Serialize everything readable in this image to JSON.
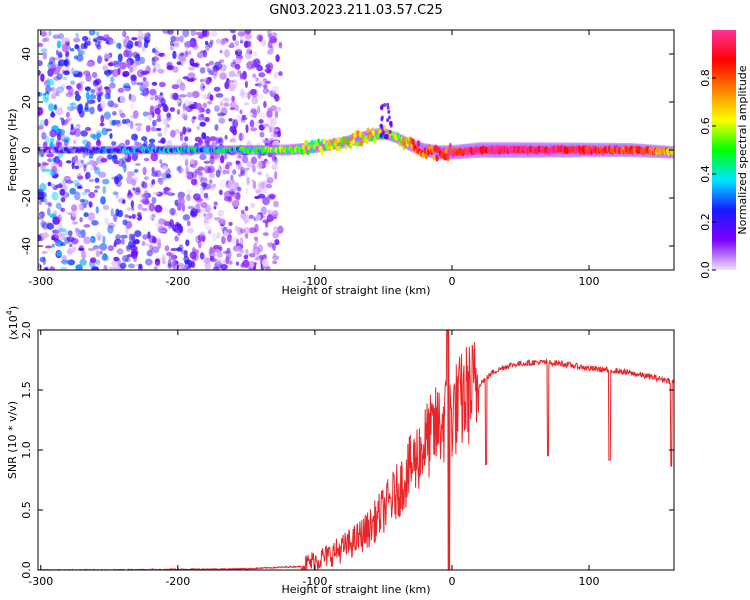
{
  "title": "GN03.2023.211.03.57.C25",
  "chart_data": [
    {
      "type": "heatmap",
      "xlabel": "Height of straight line (km)",
      "ylabel": "Frequency (Hz)",
      "xlim": [
        -302,
        162
      ],
      "ylim": [
        -50,
        50
      ],
      "xticks": [
        -300,
        -200,
        -100,
        0,
        100
      ],
      "yticks": [
        -40,
        -20,
        0,
        20,
        40
      ],
      "colorbar": {
        "label": "Normalized spectral amplitude",
        "range": [
          0,
          1
        ],
        "ticks": [
          "0.0",
          "0.2",
          "0.4",
          "0.6",
          "0.8"
        ],
        "tick_values": [
          0,
          0.2,
          0.4,
          0.6,
          0.8
        ],
        "colormap": [
          "#f0e0ff",
          "#7b00ff",
          "#1a1aff",
          "#00e5ff",
          "#00ff00",
          "#ffff00",
          "#ff8000",
          "#ff0000",
          "#ff3399"
        ]
      },
      "ridge": {
        "description_x": [
          -300,
          -250,
          -200,
          -150,
          -120,
          -100,
          -80,
          -60,
          -50,
          -40,
          -30,
          -20,
          -10,
          0,
          20,
          50,
          80,
          100,
          130,
          162
        ],
        "center_freq": [
          0,
          0,
          0,
          0,
          0,
          1,
          3,
          6,
          7,
          5,
          2,
          0,
          -1,
          -1,
          0,
          0,
          0,
          0,
          0,
          -1
        ],
        "amplitude": [
          0.1,
          0.25,
          0.35,
          0.4,
          0.55,
          0.55,
          0.6,
          0.65,
          0.6,
          0.55,
          0.75,
          0.8,
          0.85,
          0.9,
          1.0,
          1.0,
          0.95,
          0.9,
          0.85,
          0.7
        ]
      },
      "noise_region_x": [
        -302,
        -125
      ]
    },
    {
      "type": "line",
      "xlabel": "Height of straight line (km)",
      "ylabel": "SNR (10 * v/v)",
      "y_multiplier": "(x10",
      "y_multiplier_exp": "4",
      "xlim": [
        -302,
        162
      ],
      "ylim": [
        0,
        2.0
      ],
      "xticks": [
        -300,
        -200,
        -100,
        0,
        100
      ],
      "yticks": [
        "0.0",
        "0.5",
        "1.0",
        "1.5",
        "2.0"
      ],
      "ytick_values": [
        0,
        0.5,
        1.0,
        1.5,
        2.0
      ],
      "series": [
        {
          "color": "#e8262a",
          "x": [
            -302,
            -250,
            -200,
            -150,
            -110,
            -100,
            -90,
            -80,
            -70,
            -60,
            -50,
            -40,
            -30,
            -20,
            -10,
            0,
            10,
            20,
            30,
            40,
            50,
            60,
            70,
            80,
            90,
            100,
            120,
            140,
            162
          ],
          "y": [
            0.0,
            0.0,
            0.005,
            0.01,
            0.03,
            0.08,
            0.12,
            0.18,
            0.25,
            0.35,
            0.5,
            0.65,
            0.85,
            1.05,
            1.2,
            1.3,
            1.45,
            1.55,
            1.65,
            1.7,
            1.72,
            1.73,
            1.73,
            1.72,
            1.7,
            1.68,
            1.66,
            1.62,
            1.57
          ]
        }
      ],
      "dropouts_x": [
        25,
        70,
        115,
        160
      ]
    }
  ]
}
